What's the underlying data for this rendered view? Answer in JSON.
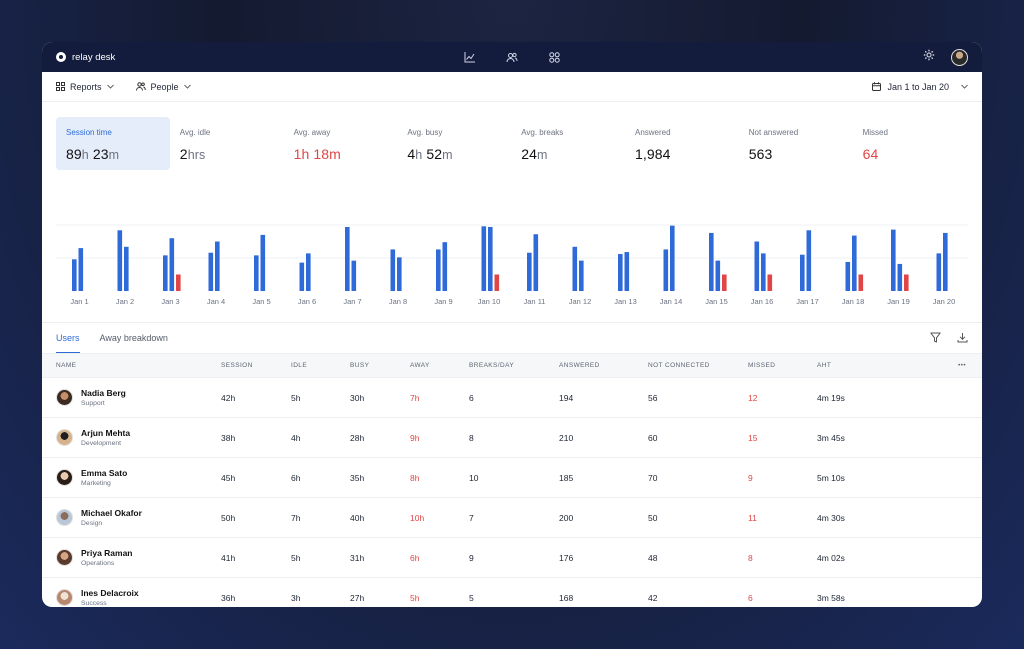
{
  "app": {
    "name": "relay desk"
  },
  "topnav": {
    "icons": [
      "chart-icon",
      "people-icon",
      "grid-icon"
    ]
  },
  "toolbar": {
    "reports_label": "Reports",
    "people_label": "People",
    "date_range": "Jan 1 to Jan 20"
  },
  "stats": [
    {
      "label": "Session time",
      "parts": [
        [
          "89",
          "n"
        ],
        [
          "h",
          "u"
        ],
        [
          " 23",
          "n"
        ],
        [
          "m",
          "u"
        ]
      ],
      "active": true
    },
    {
      "label": "Avg. idle",
      "parts": [
        [
          "2",
          "n"
        ],
        [
          "hrs",
          "u"
        ]
      ]
    },
    {
      "label": "Avg. away",
      "parts": [
        [
          "1h 18m",
          "r"
        ]
      ]
    },
    {
      "label": "Avg. busy",
      "parts": [
        [
          "4",
          "n"
        ],
        [
          "h",
          "u"
        ],
        [
          " 52",
          "n"
        ],
        [
          "m",
          "u"
        ]
      ]
    },
    {
      "label": "Avg. breaks",
      "parts": [
        [
          "24",
          "n"
        ],
        [
          "m",
          "u"
        ]
      ]
    },
    {
      "label": "Answered",
      "parts": [
        [
          "1,984",
          "n"
        ]
      ]
    },
    {
      "label": "Not answered",
      "parts": [
        [
          "563",
          "n"
        ]
      ]
    },
    {
      "label": "Missed",
      "parts": [
        [
          "64",
          "r"
        ]
      ]
    }
  ],
  "chart_data": {
    "type": "bar",
    "categories": [
      "Jan 1",
      "Jan 2",
      "Jan 3",
      "Jan 4",
      "Jan 5",
      "Jan 6",
      "Jan 7",
      "Jan 8",
      "Jan 9",
      "Jan 10",
      "Jan 11",
      "Jan 12",
      "Jan 13",
      "Jan 14",
      "Jan 15",
      "Jan 16",
      "Jan 17",
      "Jan 18",
      "Jan 19",
      "Jan 20"
    ],
    "series": [
      {
        "values": [
          48,
          92,
          54,
          58,
          54,
          43,
          97,
          63,
          63,
          98,
          58,
          67,
          56,
          63,
          88,
          75,
          55,
          44,
          93,
          57
        ],
        "color": "#2f6bd8"
      },
      {
        "values": [
          65,
          67,
          80,
          75,
          85,
          57,
          46,
          51,
          74,
          97,
          86,
          46,
          59,
          99,
          46,
          57,
          92,
          84,
          41,
          88
        ],
        "color": "#2f6bd8"
      },
      {
        "values": [
          0,
          0,
          25,
          0,
          0,
          0,
          0,
          0,
          0,
          25,
          0,
          0,
          0,
          0,
          25,
          25,
          0,
          25,
          25,
          0
        ],
        "color": "#e04646"
      }
    ],
    "ylim": [
      0,
      100
    ],
    "grid": true
  },
  "tabs": [
    {
      "label": "Users",
      "active": true
    },
    {
      "label": "Away breakdown"
    }
  ],
  "table": {
    "columns": [
      "NAME",
      "SESSION",
      "IDLE",
      "BUSY",
      "AWAY",
      "BREAKS/DAY",
      "ANSWERED",
      "NOT CONNECTED",
      "MISSED",
      "AHT"
    ],
    "more_label": "•••",
    "rows": [
      {
        "name": "Nadia Berg",
        "role": "Support",
        "session": "42h",
        "idle": "5h",
        "busy": "30h",
        "away": "7h",
        "breaks": "6",
        "answered": "194",
        "not_connected": "56",
        "missed": "12",
        "aht": "4m 19s"
      },
      {
        "name": "Arjun Mehta",
        "role": "Development",
        "session": "38h",
        "idle": "4h",
        "busy": "28h",
        "away": "9h",
        "breaks": "8",
        "answered": "210",
        "not_connected": "60",
        "missed": "15",
        "aht": "3m 45s"
      },
      {
        "name": "Emma Sato",
        "role": "Marketing",
        "session": "45h",
        "idle": "6h",
        "busy": "35h",
        "away": "8h",
        "breaks": "10",
        "answered": "185",
        "not_connected": "70",
        "missed": "9",
        "aht": "5m 10s"
      },
      {
        "name": "Michael Okafor",
        "role": "Design",
        "session": "50h",
        "idle": "7h",
        "busy": "40h",
        "away": "10h",
        "breaks": "7",
        "answered": "200",
        "not_connected": "50",
        "missed": "11",
        "aht": "4m 30s"
      },
      {
        "name": "Priya Raman",
        "role": "Operations",
        "session": "41h",
        "idle": "5h",
        "busy": "31h",
        "away": "6h",
        "breaks": "9",
        "answered": "176",
        "not_connected": "48",
        "missed": "8",
        "aht": "4m 02s"
      },
      {
        "name": "Ines Delacroix",
        "role": "Success",
        "session": "36h",
        "idle": "3h",
        "busy": "27h",
        "away": "5h",
        "breaks": "5",
        "answered": "168",
        "not_connected": "42",
        "missed": "6",
        "aht": "3m 58s"
      }
    ]
  }
}
